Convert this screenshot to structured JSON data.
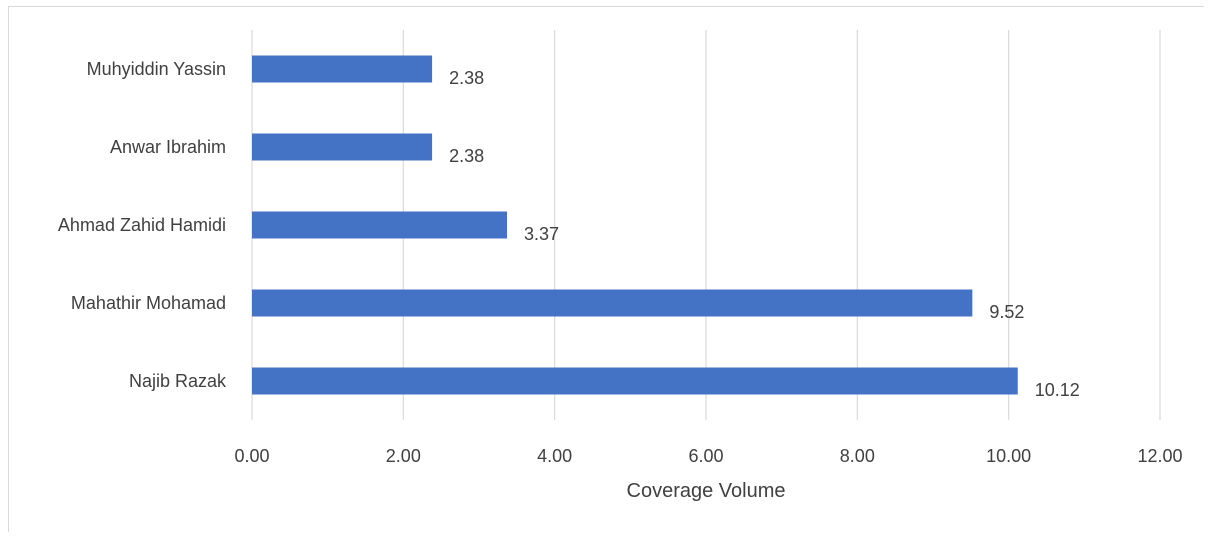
{
  "chart_data": {
    "type": "bar",
    "orientation": "horizontal",
    "categories": [
      "Najib Razak",
      "Mahathir Mohamad",
      "Ahmad Zahid Hamidi",
      "Anwar Ibrahim",
      "Muhyiddin Yassin"
    ],
    "values": [
      10.12,
      9.52,
      3.37,
      2.38,
      2.38
    ],
    "value_labels": [
      "10.12",
      "9.52",
      "3.37",
      "2.38",
      "2.38"
    ],
    "xlabel": "Coverage Volume",
    "ylabel": "",
    "xlim": [
      0,
      12
    ],
    "x_ticks": [
      0,
      2,
      4,
      6,
      8,
      10,
      12
    ],
    "x_tick_labels": [
      "0.00",
      "2.00",
      "4.00",
      "6.00",
      "8.00",
      "10.00",
      "12.00"
    ],
    "grid": "vertical",
    "bar_color": "#4472C4",
    "grid_color": "#d9d9d9",
    "text_color": "#404040"
  }
}
